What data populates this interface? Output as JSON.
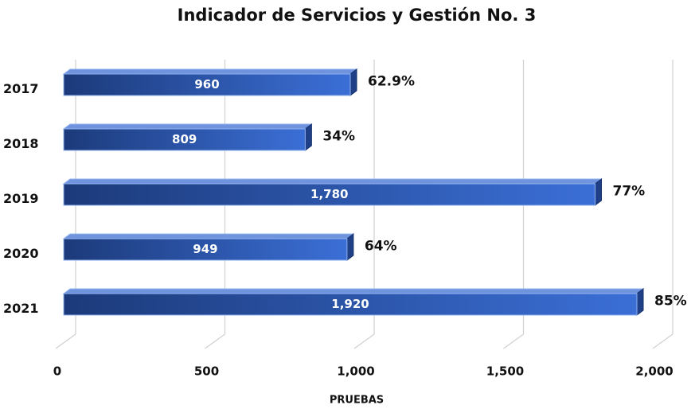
{
  "chart_data": {
    "type": "bar",
    "orientation": "horizontal",
    "title": "Indicador  de Servicios  y Gestión  No. 3",
    "categories": [
      "2017",
      "2018",
      "2019",
      "2020",
      "2021"
    ],
    "values": [
      960,
      809,
      1780,
      949,
      1920
    ],
    "value_labels": [
      "960",
      "809",
      "1,780",
      "949",
      "1,920"
    ],
    "annotations": [
      {
        "value": 62.9,
        "label": "62.9%"
      },
      {
        "value": 34,
        "label": "34%"
      },
      {
        "value": 77,
        "label": "77%"
      },
      {
        "value": 64,
        "label": "64%"
      },
      {
        "value": 85,
        "label": "85%"
      }
    ],
    "color": "#2e5cb8",
    "xlabel": "PRUEBAS",
    "xlim": [
      0,
      2000
    ],
    "xticks": [
      0,
      500,
      {
        "value": 1000,
        "label": "1,000"
      },
      {
        "value": 1500,
        "label": "1,500"
      },
      {
        "value": 2000,
        "label": "2,000"
      }
    ],
    "grid": true
  }
}
